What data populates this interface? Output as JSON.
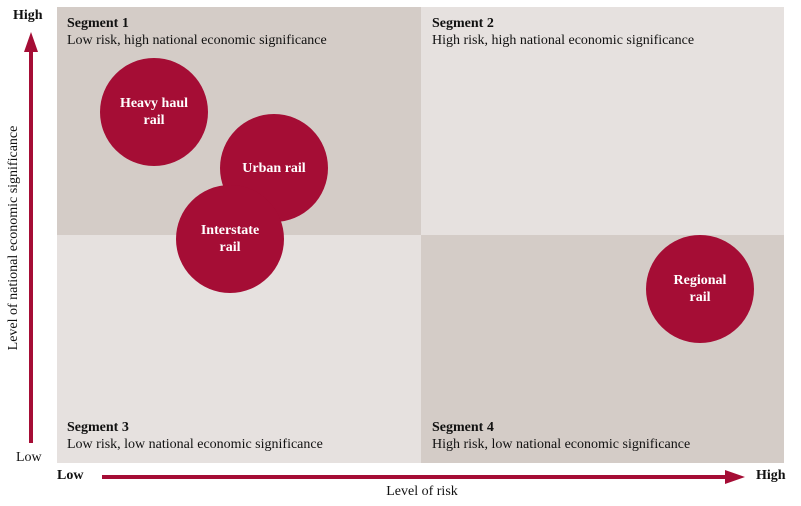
{
  "segments": [
    {
      "title": "Segment 1",
      "desc": "Low risk, high national economic significance"
    },
    {
      "title": "Segment 2",
      "desc": "High risk, high national economic significance"
    },
    {
      "title": "Segment 3",
      "desc": "Low risk, low national economic significance"
    },
    {
      "title": "Segment 4",
      "desc": "High risk, low national economic significance"
    }
  ],
  "circles": [
    {
      "line1": "Heavy haul",
      "line2": "rail"
    },
    {
      "line1": "Urban rail",
      "line2": ""
    },
    {
      "line1": "Interstate",
      "line2": "rail"
    },
    {
      "line1": "Regional",
      "line2": "rail"
    }
  ],
  "y_axis": {
    "label": "Level of national economic significance",
    "high": "High",
    "low": "Low"
  },
  "x_axis": {
    "label": "Level of risk",
    "low": "Low",
    "high": "High"
  },
  "colors": {
    "accent": "#a50d35",
    "dark_quadrant": "#d4ccc7",
    "light_quadrant": "#e6e1df"
  }
}
